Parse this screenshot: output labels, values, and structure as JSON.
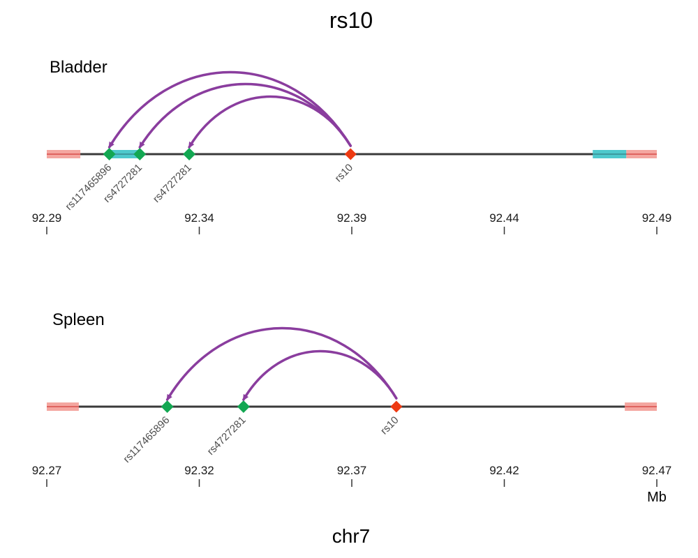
{
  "title": "rs10",
  "xlabel": "chr7",
  "unit": "Mb",
  "colors": {
    "axis_line": "#3a3a3a",
    "outer_region": "#f4a6a0",
    "outer_region_line": "#d9534f",
    "inner_region": "#4ec9cc",
    "target_snp": "#ee3a12",
    "linked_snp": "#13a752",
    "arc": "#8a3d9e"
  },
  "chart_data": [
    {
      "type": "diagram",
      "name": "Bladder",
      "xlim": [
        92.29,
        92.49
      ],
      "ticks": [
        92.29,
        92.34,
        92.39,
        92.44,
        92.49
      ],
      "tick_labels": [
        "92.29",
        "92.34",
        "92.39",
        "92.44",
        "92.49"
      ],
      "regions": [
        {
          "kind": "outer",
          "start": 92.29,
          "end": 92.301
        },
        {
          "kind": "inner",
          "start": 92.3105,
          "end": 92.321
        },
        {
          "kind": "inner",
          "start": 92.469,
          "end": 92.48
        },
        {
          "kind": "outer",
          "start": 92.48,
          "end": 92.49
        }
      ],
      "snps": [
        {
          "label": "rs117465896",
          "pos": 92.3105,
          "kind": "linked"
        },
        {
          "label": "rs4727281",
          "pos": 92.3205,
          "kind": "linked"
        },
        {
          "label": "rs4727281",
          "pos": 92.3367,
          "kind": "linked"
        },
        {
          "label": "rs10",
          "pos": 92.3896,
          "kind": "target"
        }
      ],
      "links": [
        {
          "from": 3,
          "to": 0
        },
        {
          "from": 3,
          "to": 1
        },
        {
          "from": 3,
          "to": 2
        }
      ]
    },
    {
      "type": "diagram",
      "name": "Spleen",
      "xlim": [
        92.27,
        92.47
      ],
      "ticks": [
        92.27,
        92.32,
        92.37,
        92.42,
        92.47
      ],
      "tick_labels": [
        "92.27",
        "92.32",
        "92.37",
        "92.42",
        "92.47"
      ],
      "regions": [
        {
          "kind": "outer",
          "start": 92.27,
          "end": 92.2805
        },
        {
          "kind": "outer",
          "start": 92.4595,
          "end": 92.47
        }
      ],
      "snps": [
        {
          "label": "rs117465896",
          "pos": 92.3095,
          "kind": "linked"
        },
        {
          "label": "rs4727281",
          "pos": 92.3345,
          "kind": "linked"
        },
        {
          "label": "rs10",
          "pos": 92.3846,
          "kind": "target"
        }
      ],
      "links": [
        {
          "from": 2,
          "to": 0
        },
        {
          "from": 2,
          "to": 1
        }
      ]
    }
  ]
}
